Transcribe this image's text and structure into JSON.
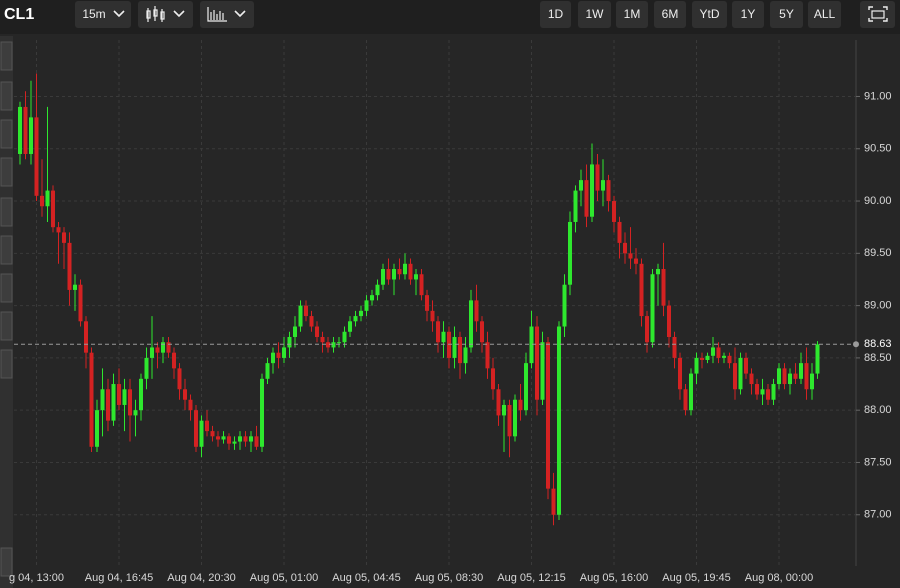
{
  "toolbar": {
    "symbol": "CL1",
    "interval": "15m",
    "ranges": [
      "1D",
      "1W",
      "1M",
      "6M",
      "YtD",
      "1Y",
      "5Y",
      "ALL"
    ]
  },
  "chart_data": {
    "type": "candlestick",
    "up_color": "#2ee82e",
    "down_color": "#d42222",
    "grid": true,
    "ylim": [
      86.51,
      91.54
    ],
    "yticks": [
      {
        "value": 87,
        "label": "87.00"
      },
      {
        "value": 87.5,
        "label": "87.50"
      },
      {
        "value": 88,
        "label": "88.00"
      },
      {
        "value": 88.5,
        "label": "88.50"
      },
      {
        "value": 89,
        "label": "89.00"
      },
      {
        "value": 89.5,
        "label": "89.50"
      },
      {
        "value": 90,
        "label": "90.00"
      },
      {
        "value": 90.5,
        "label": "90.50"
      },
      {
        "value": 91,
        "label": "91.00"
      }
    ],
    "last_price": 88.63,
    "categories": [
      null,
      null,
      null,
      "g 04, 13:00",
      null,
      null,
      null,
      null,
      null,
      null,
      null,
      null,
      null,
      null,
      null,
      null,
      null,
      null,
      "Aug 04, 16:45",
      null,
      null,
      null,
      null,
      null,
      null,
      null,
      null,
      null,
      null,
      null,
      null,
      null,
      null,
      "Aug 04, 20:30",
      null,
      null,
      null,
      null,
      null,
      null,
      null,
      null,
      null,
      null,
      null,
      null,
      null,
      null,
      "Aug 05, 01:00",
      null,
      null,
      null,
      null,
      null,
      null,
      null,
      null,
      null,
      null,
      null,
      null,
      null,
      null,
      "Aug 05, 04:45",
      null,
      null,
      null,
      null,
      null,
      null,
      null,
      null,
      null,
      null,
      null,
      null,
      null,
      null,
      "Aug 05, 08:30",
      null,
      null,
      null,
      null,
      null,
      null,
      null,
      null,
      null,
      null,
      null,
      null,
      null,
      null,
      "Aug 05, 12:15",
      null,
      null,
      null,
      null,
      null,
      null,
      null,
      null,
      null,
      null,
      null,
      null,
      null,
      null,
      "Aug 05, 16:00",
      null,
      null,
      null,
      null,
      null,
      null,
      null,
      null,
      null,
      null,
      null,
      null,
      null,
      null,
      "Aug 05, 19:45",
      null,
      null,
      null,
      null,
      null,
      null,
      null,
      null,
      null,
      null,
      null,
      null,
      null,
      null,
      "Aug 08, 00:00",
      null,
      null,
      null,
      null,
      null,
      null,
      null
    ],
    "ohlc": [
      [
        90.45,
        90.95,
        90.35,
        90.9
      ],
      [
        90.9,
        91.05,
        90.4,
        90.45
      ],
      [
        90.45,
        91.15,
        90.35,
        90.8
      ],
      [
        90.8,
        91.22,
        90.0,
        90.05
      ],
      [
        90.05,
        90.4,
        89.85,
        89.95
      ],
      [
        89.95,
        90.9,
        89.8,
        90.1
      ],
      [
        90.1,
        90.15,
        89.7,
        89.75
      ],
      [
        89.75,
        89.8,
        89.4,
        89.7
      ],
      [
        89.7,
        89.75,
        89.35,
        89.6
      ],
      [
        89.6,
        89.7,
        89.0,
        89.15
      ],
      [
        89.15,
        89.3,
        88.95,
        89.2
      ],
      [
        89.2,
        89.25,
        88.8,
        88.85
      ],
      [
        88.85,
        88.9,
        88.4,
        88.55
      ],
      [
        88.55,
        88.6,
        87.6,
        87.65
      ],
      [
        87.65,
        88.1,
        87.6,
        88.0
      ],
      [
        88.0,
        88.4,
        87.75,
        88.2
      ],
      [
        88.2,
        88.3,
        87.8,
        87.9
      ],
      [
        87.9,
        88.35,
        87.85,
        88.25
      ],
      [
        88.25,
        88.4,
        88.0,
        88.05
      ],
      [
        88.05,
        88.3,
        87.8,
        88.2
      ],
      [
        88.2,
        88.3,
        87.7,
        87.95
      ],
      [
        87.95,
        88.1,
        87.75,
        88.0
      ],
      [
        88.0,
        88.35,
        87.9,
        88.3
      ],
      [
        88.3,
        88.6,
        88.2,
        88.5
      ],
      [
        88.5,
        88.9,
        88.3,
        88.6
      ],
      [
        88.6,
        88.65,
        88.4,
        88.55
      ],
      [
        88.55,
        88.7,
        88.45,
        88.65
      ],
      [
        88.65,
        88.7,
        88.5,
        88.55
      ],
      [
        88.55,
        88.6,
        88.3,
        88.4
      ],
      [
        88.4,
        88.45,
        88.1,
        88.2
      ],
      [
        88.2,
        88.3,
        88.0,
        88.1
      ],
      [
        88.1,
        88.15,
        87.9,
        88.0
      ],
      [
        88.0,
        88.05,
        87.6,
        87.65
      ],
      [
        87.65,
        87.95,
        87.55,
        87.9
      ],
      [
        87.9,
        88.0,
        87.75,
        87.8
      ],
      [
        87.8,
        87.85,
        87.7,
        87.75
      ],
      [
        87.75,
        87.8,
        87.65,
        87.72
      ],
      [
        87.72,
        87.8,
        87.68,
        87.75
      ],
      [
        87.75,
        87.78,
        87.62,
        87.68
      ],
      [
        87.68,
        87.75,
        87.62,
        87.7
      ],
      [
        87.7,
        87.8,
        87.62,
        87.75
      ],
      [
        87.75,
        87.8,
        87.65,
        87.7
      ],
      [
        87.7,
        87.8,
        87.6,
        87.75
      ],
      [
        87.75,
        87.85,
        87.62,
        87.65
      ],
      [
        87.65,
        88.35,
        87.6,
        88.3
      ],
      [
        88.3,
        88.5,
        88.25,
        88.45
      ],
      [
        88.45,
        88.6,
        88.35,
        88.55
      ],
      [
        88.55,
        88.65,
        88.4,
        88.5
      ],
      [
        88.5,
        88.7,
        88.45,
        88.6
      ],
      [
        88.6,
        88.75,
        88.5,
        88.7
      ],
      [
        88.7,
        88.9,
        88.6,
        88.8
      ],
      [
        88.8,
        89.05,
        88.75,
        89.0
      ],
      [
        89.0,
        89.05,
        88.85,
        88.9
      ],
      [
        88.9,
        88.95,
        88.75,
        88.8
      ],
      [
        88.8,
        88.85,
        88.65,
        88.7
      ],
      [
        88.7,
        88.75,
        88.55,
        88.65
      ],
      [
        88.65,
        88.7,
        88.55,
        88.6
      ],
      [
        88.6,
        88.7,
        88.55,
        88.65
      ],
      [
        88.65,
        88.7,
        88.6,
        88.65
      ],
      [
        88.65,
        88.8,
        88.6,
        88.75
      ],
      [
        88.75,
        88.9,
        88.7,
        88.85
      ],
      [
        88.85,
        88.95,
        88.8,
        88.9
      ],
      [
        88.9,
        89.0,
        88.85,
        88.95
      ],
      [
        88.95,
        89.1,
        88.9,
        89.05
      ],
      [
        89.05,
        89.15,
        89.0,
        89.1
      ],
      [
        89.1,
        89.25,
        89.05,
        89.2
      ],
      [
        89.2,
        89.4,
        89.15,
        89.35
      ],
      [
        89.35,
        89.45,
        89.2,
        89.25
      ],
      [
        89.25,
        89.4,
        89.1,
        89.35
      ],
      [
        89.35,
        89.45,
        89.25,
        89.3
      ],
      [
        89.3,
        89.5,
        89.25,
        89.4
      ],
      [
        89.4,
        89.45,
        89.2,
        89.25
      ],
      [
        89.25,
        89.35,
        89.1,
        89.3
      ],
      [
        89.3,
        89.35,
        89.05,
        89.1
      ],
      [
        89.1,
        89.15,
        88.85,
        88.95
      ],
      [
        88.95,
        89.05,
        88.75,
        88.85
      ],
      [
        88.85,
        88.9,
        88.55,
        88.65
      ],
      [
        88.65,
        88.85,
        88.5,
        88.75
      ],
      [
        88.75,
        88.8,
        88.4,
        88.5
      ],
      [
        88.5,
        88.8,
        88.4,
        88.7
      ],
      [
        88.7,
        88.75,
        88.3,
        88.45
      ],
      [
        88.45,
        88.7,
        88.35,
        88.6
      ],
      [
        88.6,
        89.15,
        88.55,
        89.05
      ],
      [
        89.05,
        89.2,
        88.75,
        88.85
      ],
      [
        88.85,
        88.9,
        88.55,
        88.65
      ],
      [
        88.65,
        88.75,
        88.3,
        88.4
      ],
      [
        88.4,
        88.5,
        88.1,
        88.2
      ],
      [
        88.2,
        88.25,
        87.85,
        87.95
      ],
      [
        87.95,
        88.1,
        87.6,
        88.05
      ],
      [
        88.05,
        88.1,
        87.55,
        87.75
      ],
      [
        87.75,
        88.15,
        87.7,
        88.1
      ],
      [
        88.1,
        88.25,
        87.9,
        88.0
      ],
      [
        88.0,
        88.55,
        87.95,
        88.45
      ],
      [
        88.45,
        88.95,
        88.4,
        88.8
      ],
      [
        88.8,
        88.9,
        87.95,
        88.1
      ],
      [
        88.1,
        88.75,
        88.05,
        88.65
      ],
      [
        88.65,
        88.7,
        87.15,
        87.25
      ],
      [
        87.25,
        87.4,
        86.9,
        87.0
      ],
      [
        87.0,
        88.85,
        86.95,
        88.8
      ],
      [
        88.8,
        89.3,
        88.7,
        89.2
      ],
      [
        89.2,
        89.9,
        89.1,
        89.8
      ],
      [
        89.8,
        90.15,
        89.7,
        90.1
      ],
      [
        90.1,
        90.3,
        89.95,
        90.2
      ],
      [
        90.2,
        90.35,
        89.75,
        89.85
      ],
      [
        89.85,
        90.55,
        89.8,
        90.35
      ],
      [
        90.35,
        90.45,
        90.0,
        90.1
      ],
      [
        90.1,
        90.4,
        89.95,
        90.2
      ],
      [
        90.2,
        90.25,
        89.9,
        90.0
      ],
      [
        90.0,
        90.05,
        89.7,
        89.8
      ],
      [
        89.8,
        89.85,
        89.45,
        89.6
      ],
      [
        89.6,
        89.7,
        89.4,
        89.5
      ],
      [
        89.5,
        89.75,
        89.35,
        89.45
      ],
      [
        89.45,
        89.55,
        89.3,
        89.4
      ],
      [
        89.4,
        89.45,
        88.8,
        88.9
      ],
      [
        88.9,
        88.95,
        88.55,
        88.65
      ],
      [
        88.65,
        89.35,
        88.6,
        89.3
      ],
      [
        89.3,
        89.4,
        89.0,
        89.35
      ],
      [
        89.35,
        89.6,
        88.9,
        89.0
      ],
      [
        89.0,
        89.05,
        88.6,
        88.7
      ],
      [
        88.7,
        88.75,
        88.4,
        88.5
      ],
      [
        88.5,
        88.55,
        88.1,
        88.2
      ],
      [
        88.2,
        88.25,
        87.95,
        88.0
      ],
      [
        88.0,
        88.4,
        87.95,
        88.35
      ],
      [
        88.35,
        88.55,
        88.25,
        88.5
      ],
      [
        88.5,
        88.55,
        88.4,
        88.48
      ],
      [
        88.48,
        88.55,
        88.45,
        88.52
      ],
      [
        88.52,
        88.7,
        88.45,
        88.6
      ],
      [
        88.6,
        88.65,
        88.45,
        88.5
      ],
      [
        88.5,
        88.55,
        88.45,
        88.52
      ],
      [
        88.52,
        88.55,
        88.4,
        88.45
      ],
      [
        88.45,
        88.6,
        88.1,
        88.2
      ],
      [
        88.2,
        88.55,
        88.15,
        88.5
      ],
      [
        88.5,
        88.55,
        88.3,
        88.35
      ],
      [
        88.35,
        88.4,
        88.15,
        88.25
      ],
      [
        88.25,
        88.3,
        88.1,
        88.15
      ],
      [
        88.15,
        88.3,
        88.05,
        88.2
      ],
      [
        88.2,
        88.25,
        88.05,
        88.1
      ],
      [
        88.1,
        88.3,
        88.05,
        88.25
      ],
      [
        88.25,
        88.45,
        88.2,
        88.4
      ],
      [
        88.4,
        88.45,
        88.2,
        88.25
      ],
      [
        88.25,
        88.4,
        88.15,
        88.35
      ],
      [
        88.35,
        88.45,
        88.25,
        88.3
      ],
      [
        88.3,
        88.55,
        88.25,
        88.45
      ],
      [
        88.45,
        88.6,
        88.1,
        88.2
      ],
      [
        88.2,
        88.45,
        88.1,
        88.35
      ],
      [
        88.35,
        88.66,
        88.3,
        88.63
      ]
    ]
  }
}
